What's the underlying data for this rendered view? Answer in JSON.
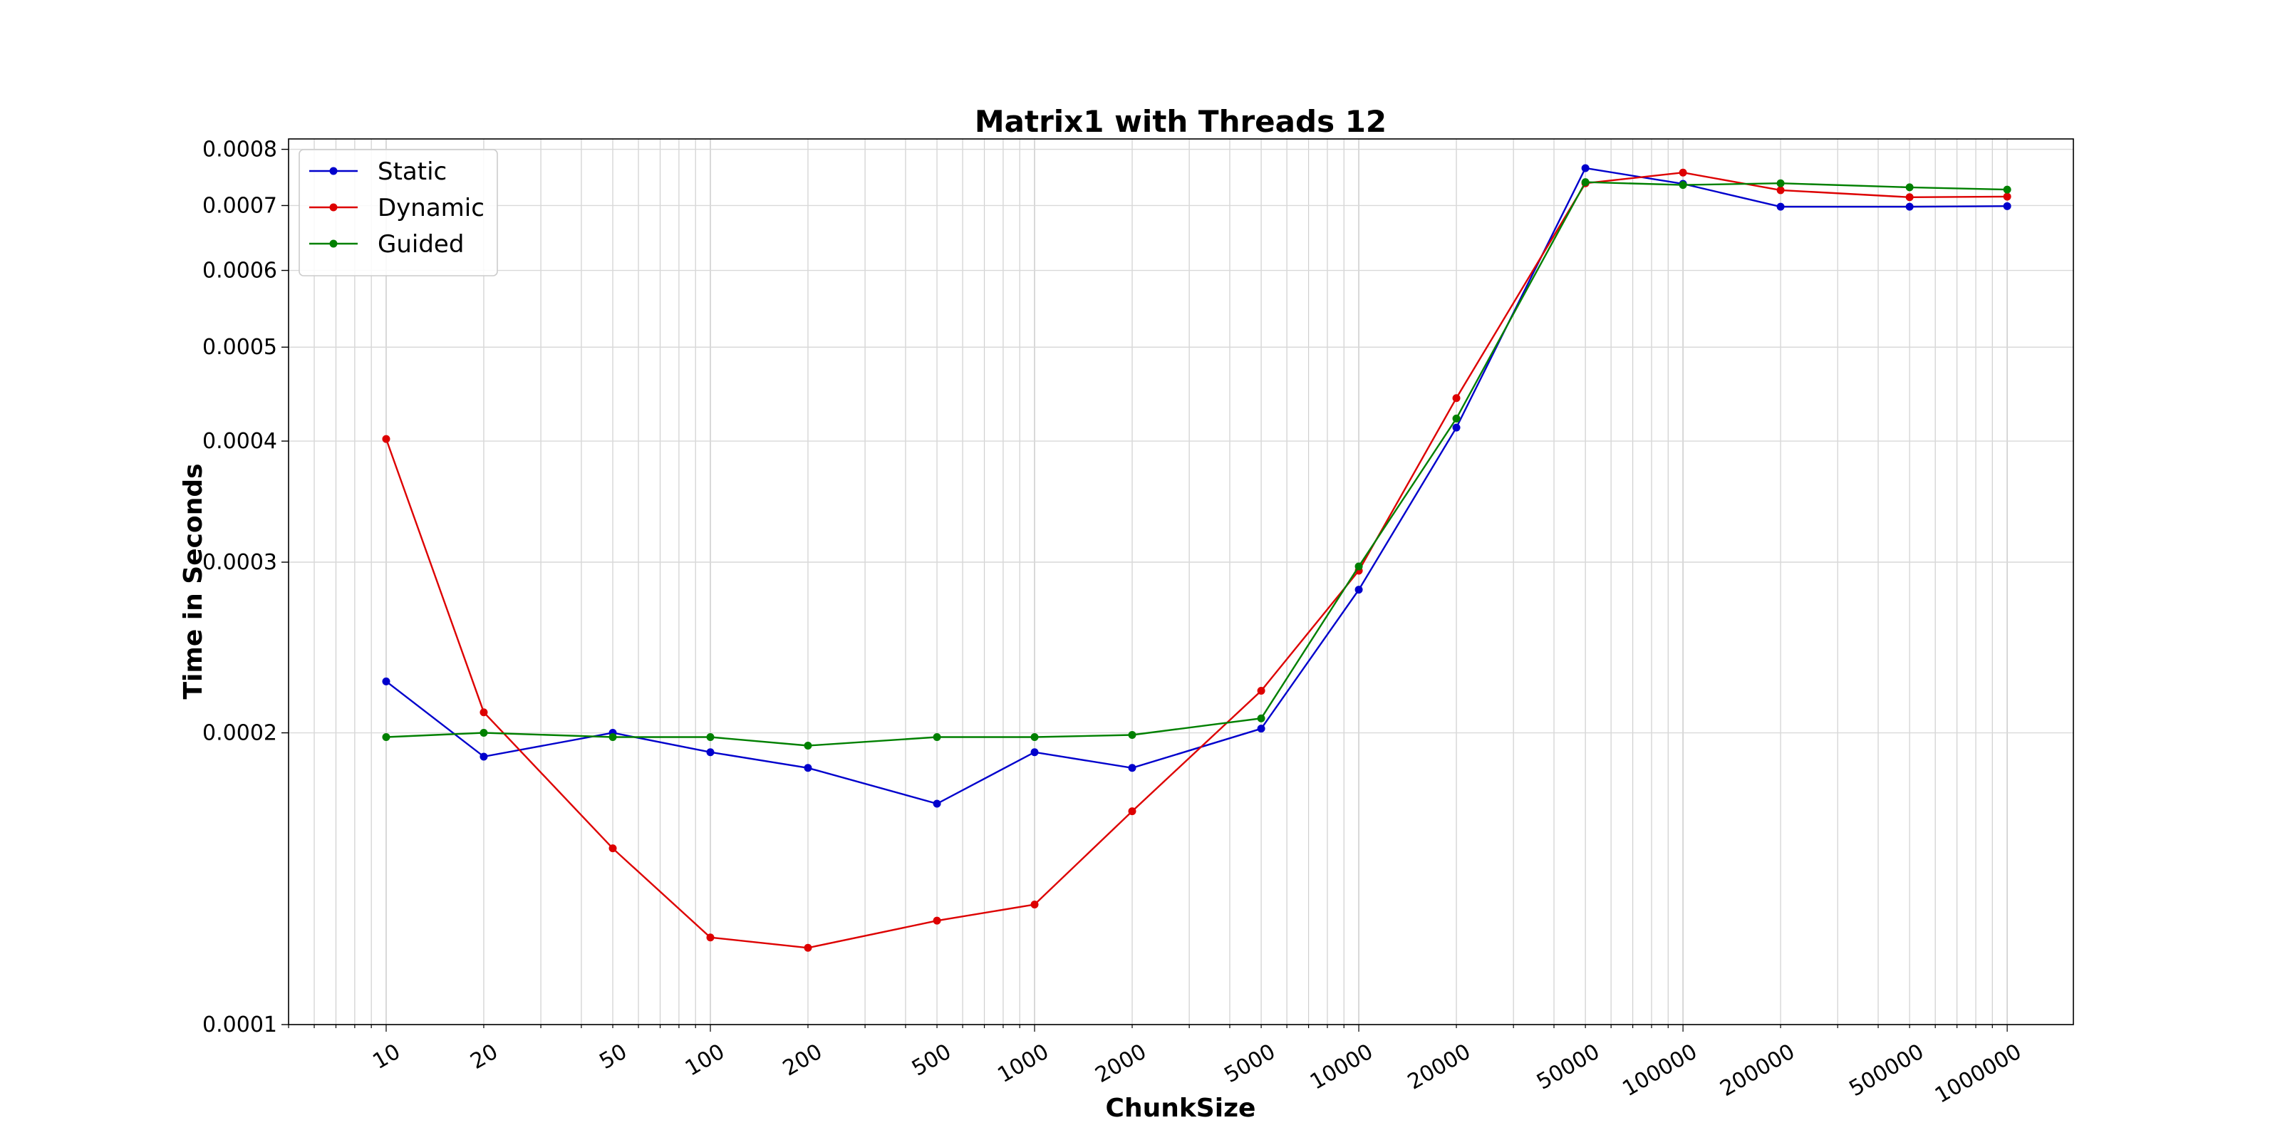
{
  "chart_data": {
    "type": "line",
    "title": "Matrix1 with Threads 12",
    "xlabel": "ChunkSize",
    "ylabel": "Time in Seconds",
    "x_scale": "log",
    "y_scale": "log",
    "xlim": [
      5,
      1600000
    ],
    "ylim": [
      0.0001,
      0.00082
    ],
    "x": [
      10,
      20,
      50,
      100,
      200,
      500,
      1000,
      2000,
      5000,
      10000,
      20000,
      50000,
      100000,
      200000,
      500000,
      1000000
    ],
    "x_tick_labels": [
      "10",
      "20",
      "50",
      "100",
      "200",
      "500",
      "1000",
      "2000",
      "5000",
      "10000",
      "20000",
      "50000",
      "100000",
      "200000",
      "500000",
      "1000000"
    ],
    "y_ticks": [
      0.0001,
      0.0002,
      0.0003,
      0.0004,
      0.0005,
      0.0006,
      0.0007,
      0.0008
    ],
    "y_tick_labels": [
      "0.0001",
      "0.0002",
      "0.0003",
      "0.0004",
      "0.0005",
      "0.0006",
      "0.0007",
      "0.0008"
    ],
    "grid": true,
    "legend_position": "top-left",
    "series": [
      {
        "name": "Static",
        "color": "#0000cc",
        "values": [
          0.000226,
          0.000189,
          0.0002,
          0.000191,
          0.000184,
          0.000169,
          0.000191,
          0.000184,
          0.000202,
          0.000281,
          0.000413,
          0.000765,
          0.000737,
          0.000698,
          0.000698,
          0.000699
        ]
      },
      {
        "name": "Dynamic",
        "color": "#dd0000",
        "values": [
          0.000402,
          0.00021,
          0.000152,
          0.000123,
          0.00012,
          0.000128,
          0.000133,
          0.000166,
          0.000221,
          0.000294,
          0.000443,
          0.000738,
          0.000757,
          0.000726,
          0.000714,
          0.000715
        ]
      },
      {
        "name": "Guided",
        "color": "#008000",
        "values": [
          0.000198,
          0.0002,
          0.000198,
          0.000198,
          0.000194,
          0.000198,
          0.000198,
          0.000199,
          0.000207,
          0.000297,
          0.000422,
          0.00074,
          0.000735,
          0.000738,
          0.000731,
          0.000727
        ]
      }
    ]
  }
}
